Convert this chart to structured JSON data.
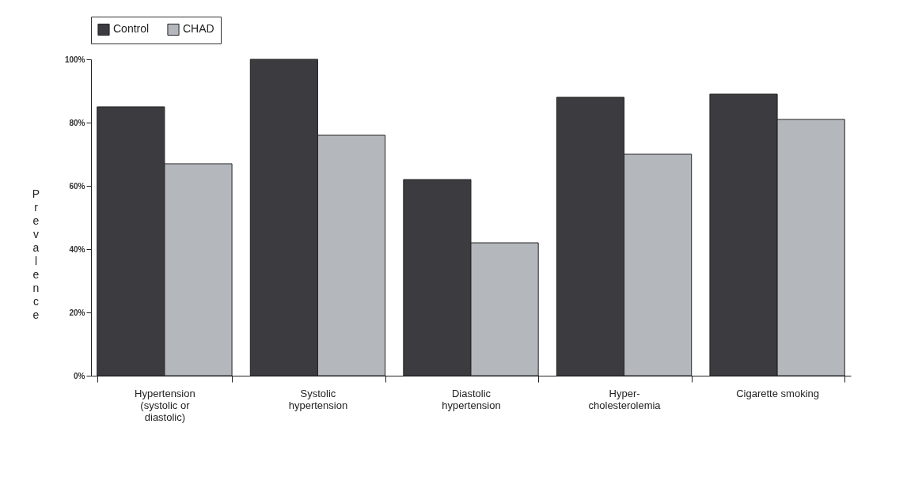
{
  "chart_data": {
    "type": "bar",
    "ylabel": "Prevalence",
    "categories": [
      "Hypertension (systolic or diastolic)",
      "Systolic hypertension",
      "Diastolic hypertension",
      "Hyper-cholesterolemia",
      "Cigarette smoking"
    ],
    "series": [
      {
        "name": "Control",
        "color": "#3c3c40",
        "values": [
          85,
          100,
          62,
          88,
          89
        ]
      },
      {
        "name": "CHAD",
        "color": "#b4b8bd",
        "values": [
          67,
          76,
          42,
          70,
          81
        ]
      }
    ],
    "ylim": [
      0,
      100
    ],
    "yticks": [
      {
        "value": 0,
        "label": "0%"
      },
      {
        "value": 20,
        "label": "20%"
      },
      {
        "value": 40,
        "label": "40%"
      },
      {
        "value": 60,
        "label": "60%"
      },
      {
        "value": 80,
        "label": "80%"
      },
      {
        "value": 100,
        "label": "100%"
      }
    ],
    "grid": false,
    "legend": "top"
  }
}
